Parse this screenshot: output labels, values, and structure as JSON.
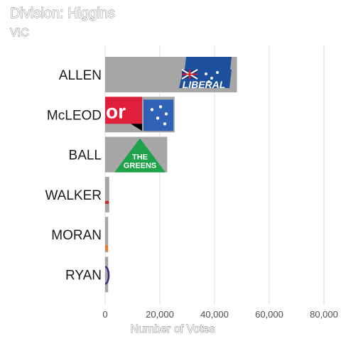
{
  "chart_data": {
    "type": "bar",
    "orientation": "horizontal",
    "title": "Division: Higgins",
    "subtitle": "VIC",
    "xlabel": "Number of Votes",
    "ylabel": "",
    "xlim": [
      0,
      85000
    ],
    "xticks": [
      0,
      20000,
      40000,
      60000,
      80000
    ],
    "xtick_labels": [
      "0",
      "20,000",
      "40,000",
      "60,000",
      "80,000"
    ],
    "grid": true,
    "categories": [
      "ALLEN",
      "McLEOD",
      "BALL",
      "WALKER",
      "MORAN",
      "RYAN"
    ],
    "values": [
      48200,
      25400,
      22700,
      1500,
      1100,
      1100
    ],
    "bar_color": "#a6a6a6",
    "bar_logos": [
      "liberal-party-logo",
      "labor-party-logo",
      "greens-party-logo",
      "party-logo",
      "party-logo",
      "party-logo"
    ],
    "logo_text": {
      "liberal": "LIBERAL",
      "labor": "or",
      "greens_line1": "THE",
      "greens_line2": "GREENS"
    }
  },
  "colors": {
    "background": "#ffffff",
    "grid": "#dcdcdc",
    "bar": "#a6a6a6",
    "liberal_blue": "#1c4f9c",
    "labor_red": "#e0203a",
    "greens_green": "#1fa34a"
  }
}
